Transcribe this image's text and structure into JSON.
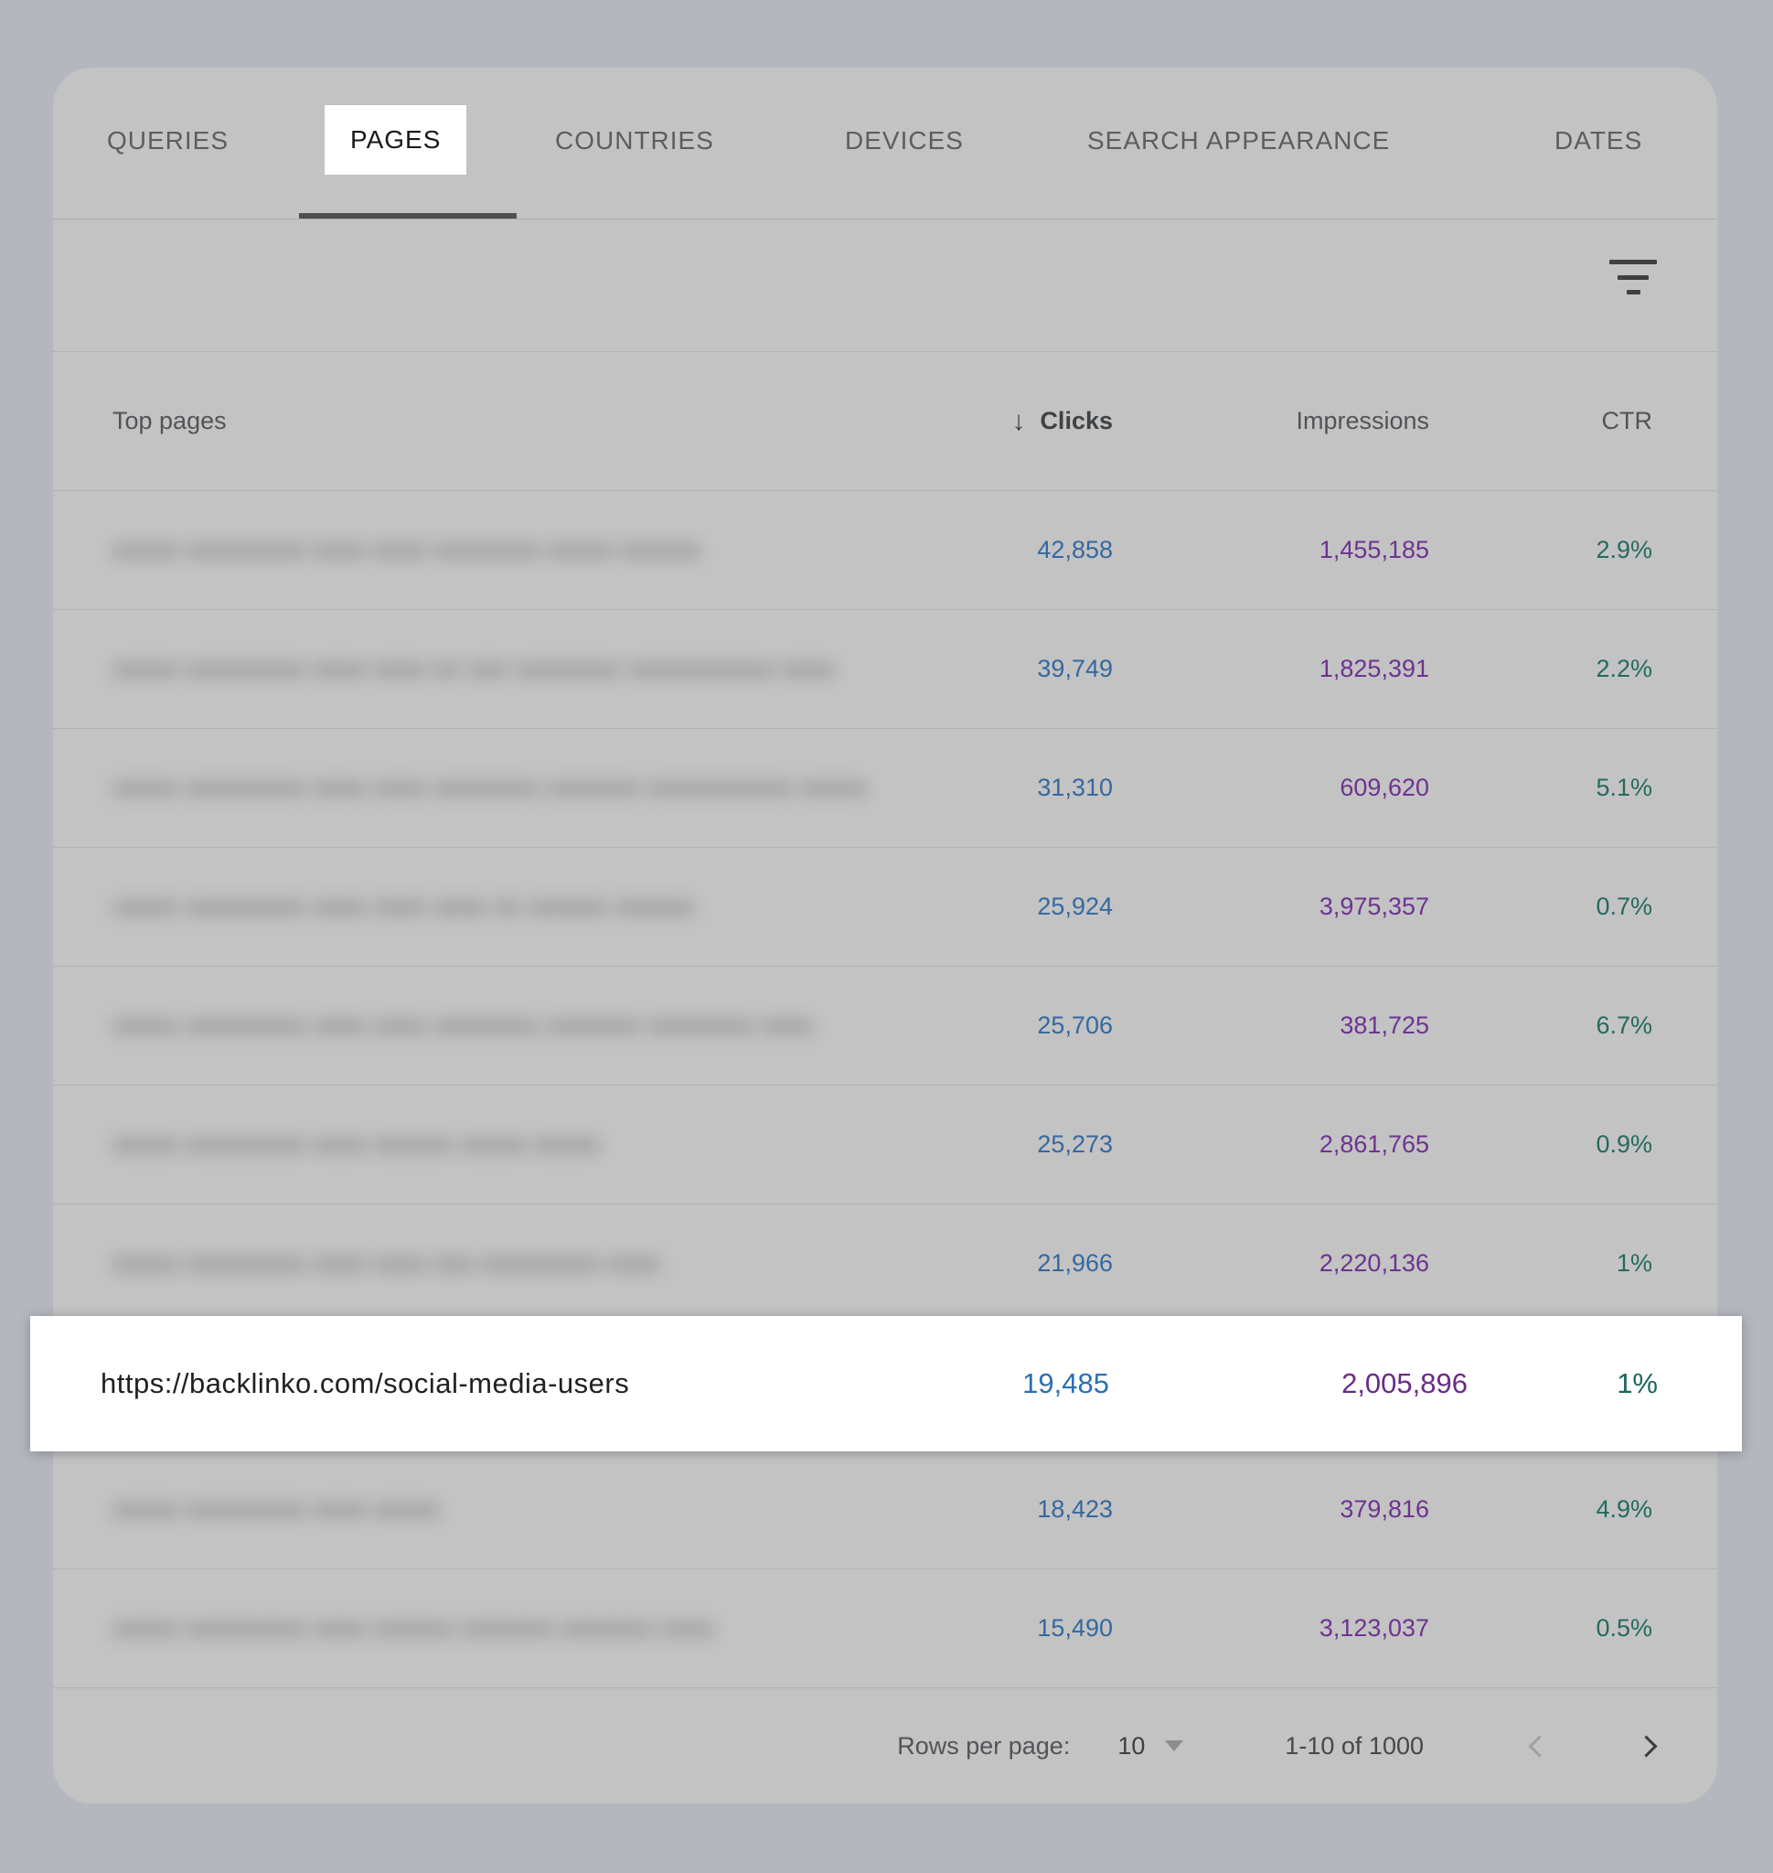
{
  "tabs": [
    {
      "label": "QUERIES",
      "active": false
    },
    {
      "label": "PAGES",
      "active": true
    },
    {
      "label": "COUNTRIES",
      "active": false
    },
    {
      "label": "DEVICES",
      "active": false
    },
    {
      "label": "SEARCH APPEARANCE",
      "active": false
    },
    {
      "label": "DATES",
      "active": false
    }
  ],
  "toolbar": {
    "filter_icon": "filter-icon"
  },
  "table": {
    "columns": {
      "pages": "Top pages",
      "clicks": "Clicks",
      "impressions": "Impressions",
      "ctr": "CTR"
    },
    "sort": {
      "column": "Clicks",
      "direction": "desc",
      "icon": "↓"
    },
    "rows": [
      {
        "blurred": true,
        "placeholder": "xxxxx xxxxxxxxx xxxx xxxx xxxxxxxx xxxxx xxxxxx",
        "clicks": "42,858",
        "impressions": "1,455,185",
        "ctr": "2.9%"
      },
      {
        "blurred": true,
        "placeholder": "xxxxx xxxxxxxxx xxxx xxxx xx xxx xxxxxxxx xxxxxxxxxxx xxxx",
        "clicks": "39,749",
        "impressions": "1,825,391",
        "ctr": "2.2%"
      },
      {
        "blurred": true,
        "placeholder": "xxxxx xxxxxxxxx xxxx xxxx xxxxxxxx xxxxxxx xxxxxxxxxxx xxxxx",
        "clicks": "31,310",
        "impressions": "609,620",
        "ctr": "5.1%"
      },
      {
        "blurred": true,
        "placeholder": "xxxxx xxxxxxxxx xxxx xxxx xxxx xx xxxxxx xxxxxx",
        "clicks": "25,924",
        "impressions": "3,975,357",
        "ctr": "0.7%"
      },
      {
        "blurred": true,
        "placeholder": "xxxxx xxxxxxxxx xxxx xxxx xxxxxxxx xxxxxxx xxxxxxxx xxxx",
        "clicks": "25,706",
        "impressions": "381,725",
        "ctr": "6.7%"
      },
      {
        "blurred": true,
        "placeholder": "xxxxx xxxxxxxxx xxxx xxxxxx xxxxx xxxxx",
        "clicks": "25,273",
        "impressions": "2,861,765",
        "ctr": "0.9%"
      },
      {
        "blurred": true,
        "placeholder": "xxxxx xxxxxxxxx xxxx xxxx xxx xxxxxxxxx xxxx",
        "clicks": "21,966",
        "impressions": "2,220,136",
        "ctr": "1%"
      },
      {
        "highlighted": true,
        "url": "https://backlinko.com/social-media-users",
        "clicks": "19,485",
        "impressions": "2,005,896",
        "ctr": "1%"
      },
      {
        "blurred": true,
        "placeholder": "xxxxx xxxxxxxxx xxxx xxxxx",
        "clicks": "18,423",
        "impressions": "379,816",
        "ctr": "4.9%"
      },
      {
        "blurred": true,
        "placeholder": "xxxxx xxxxxxxxx xxxx xxxxxx xxxxxxx xxxxxxx xxxx",
        "clicks": "15,490",
        "impressions": "3,123,037",
        "ctr": "0.5%"
      }
    ]
  },
  "footer": {
    "rows_per_page_label": "Rows per page:",
    "rows_per_page_value": "10",
    "range": "1-10 of 1000"
  },
  "colors": {
    "page_background": "#b4b8be",
    "card_background": "#c3c3c4",
    "highlight_background": "#ffffff",
    "clicks_blue": "#2b6fb2",
    "impressions_purple": "#692c87",
    "ctr_teal": "#1a665c",
    "tab_underline": "#4c4e50"
  }
}
